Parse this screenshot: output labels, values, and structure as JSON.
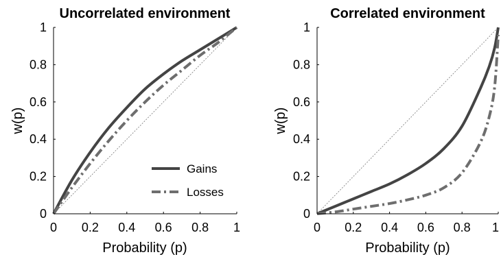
{
  "colors": {
    "gains": "#444444",
    "losses": "#6e6e6e",
    "reference": "#777777",
    "axis": "#000000"
  },
  "chart_data": [
    {
      "type": "line",
      "title": "Uncorrelated environment",
      "xlabel": "Probability (p)",
      "ylabel": "w(p)",
      "xlim": [
        0,
        1
      ],
      "ylim": [
        0,
        1
      ],
      "xticks": [
        "0",
        "0.2",
        "0.4",
        "0.6",
        "0.8",
        "1"
      ],
      "yticks": [
        "0",
        "0.2",
        "0.4",
        "0.6",
        "0.8",
        "1"
      ],
      "grid": false,
      "legend": {
        "position": "bottom-right",
        "entries": [
          {
            "label": "Gains",
            "style": "solid"
          },
          {
            "label": "Losses",
            "style": "dash-dot"
          }
        ]
      },
      "x": [
        0,
        0.1,
        0.2,
        0.3,
        0.4,
        0.5,
        0.6,
        0.7,
        0.8,
        0.9,
        1.0
      ],
      "series": [
        {
          "style": "solid",
          "color_key": "gains",
          "values": [
            0,
            0.18,
            0.33,
            0.46,
            0.57,
            0.67,
            0.75,
            0.82,
            0.88,
            0.94,
            1.0
          ]
        },
        {
          "style": "dash-dot",
          "color_key": "losses",
          "values": [
            0,
            0.14,
            0.27,
            0.39,
            0.5,
            0.6,
            0.69,
            0.77,
            0.85,
            0.92,
            1.0
          ]
        },
        {
          "style": "dotted-reference",
          "color_key": "reference",
          "values": [
            0,
            0.1,
            0.2,
            0.3,
            0.4,
            0.5,
            0.6,
            0.7,
            0.8,
            0.9,
            1.0
          ]
        }
      ]
    },
    {
      "type": "line",
      "title": "Correlated environment",
      "xlabel": "Probability (p)",
      "ylabel": "w(p)",
      "xlim": [
        0,
        1
      ],
      "ylim": [
        0,
        1
      ],
      "xticks": [
        "0",
        "0.2",
        "0.4",
        "0.6",
        "0.8",
        "1"
      ],
      "yticks": [
        "0",
        "0.2",
        "0.4",
        "0.6",
        "0.8",
        "1"
      ],
      "grid": false,
      "x": [
        0,
        0.1,
        0.2,
        0.3,
        0.4,
        0.5,
        0.6,
        0.7,
        0.8,
        0.9,
        0.95,
        0.98,
        1.0
      ],
      "series": [
        {
          "style": "solid",
          "color_key": "gains",
          "values": [
            0,
            0.04,
            0.08,
            0.12,
            0.16,
            0.21,
            0.27,
            0.35,
            0.47,
            0.67,
            0.79,
            0.89,
            1.0
          ]
        },
        {
          "style": "dash-dot",
          "color_key": "losses",
          "values": [
            0,
            0.01,
            0.025,
            0.04,
            0.055,
            0.075,
            0.1,
            0.14,
            0.22,
            0.38,
            0.52,
            0.68,
            0.96
          ]
        },
        {
          "style": "dotted-reference",
          "color_key": "reference",
          "values": [
            0,
            0.1,
            0.2,
            0.3,
            0.4,
            0.5,
            0.6,
            0.7,
            0.8,
            0.9,
            0.95,
            0.98,
            1.0
          ]
        }
      ]
    }
  ]
}
